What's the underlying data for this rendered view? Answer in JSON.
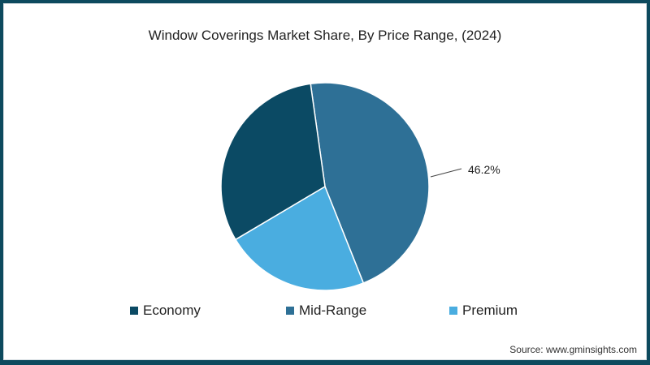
{
  "chart_data": {
    "type": "pie",
    "title": "Window Coverings Market Share, By Price Range, (2024)",
    "categories": [
      "Economy",
      "Mid-Range",
      "Premium"
    ],
    "values": [
      31.3,
      46.2,
      22.5
    ],
    "colors": [
      "#0b4a64",
      "#2e7096",
      "#4aade0"
    ],
    "data_labels": [
      {
        "category": "Mid-Range",
        "text": "46.2%"
      }
    ],
    "legend_position": "bottom"
  },
  "header": {
    "title": "Window Coverings Market Share, By Price Range, (2024)"
  },
  "legend": [
    {
      "label": "Economy",
      "color": "#0b4a64"
    },
    {
      "label": "Mid-Range",
      "color": "#2e7096"
    },
    {
      "label": "Premium",
      "color": "#4aade0"
    }
  ],
  "annotation": {
    "midrange_label": "46.2%"
  },
  "footer": {
    "source": "Source: www.gminsights.com"
  }
}
